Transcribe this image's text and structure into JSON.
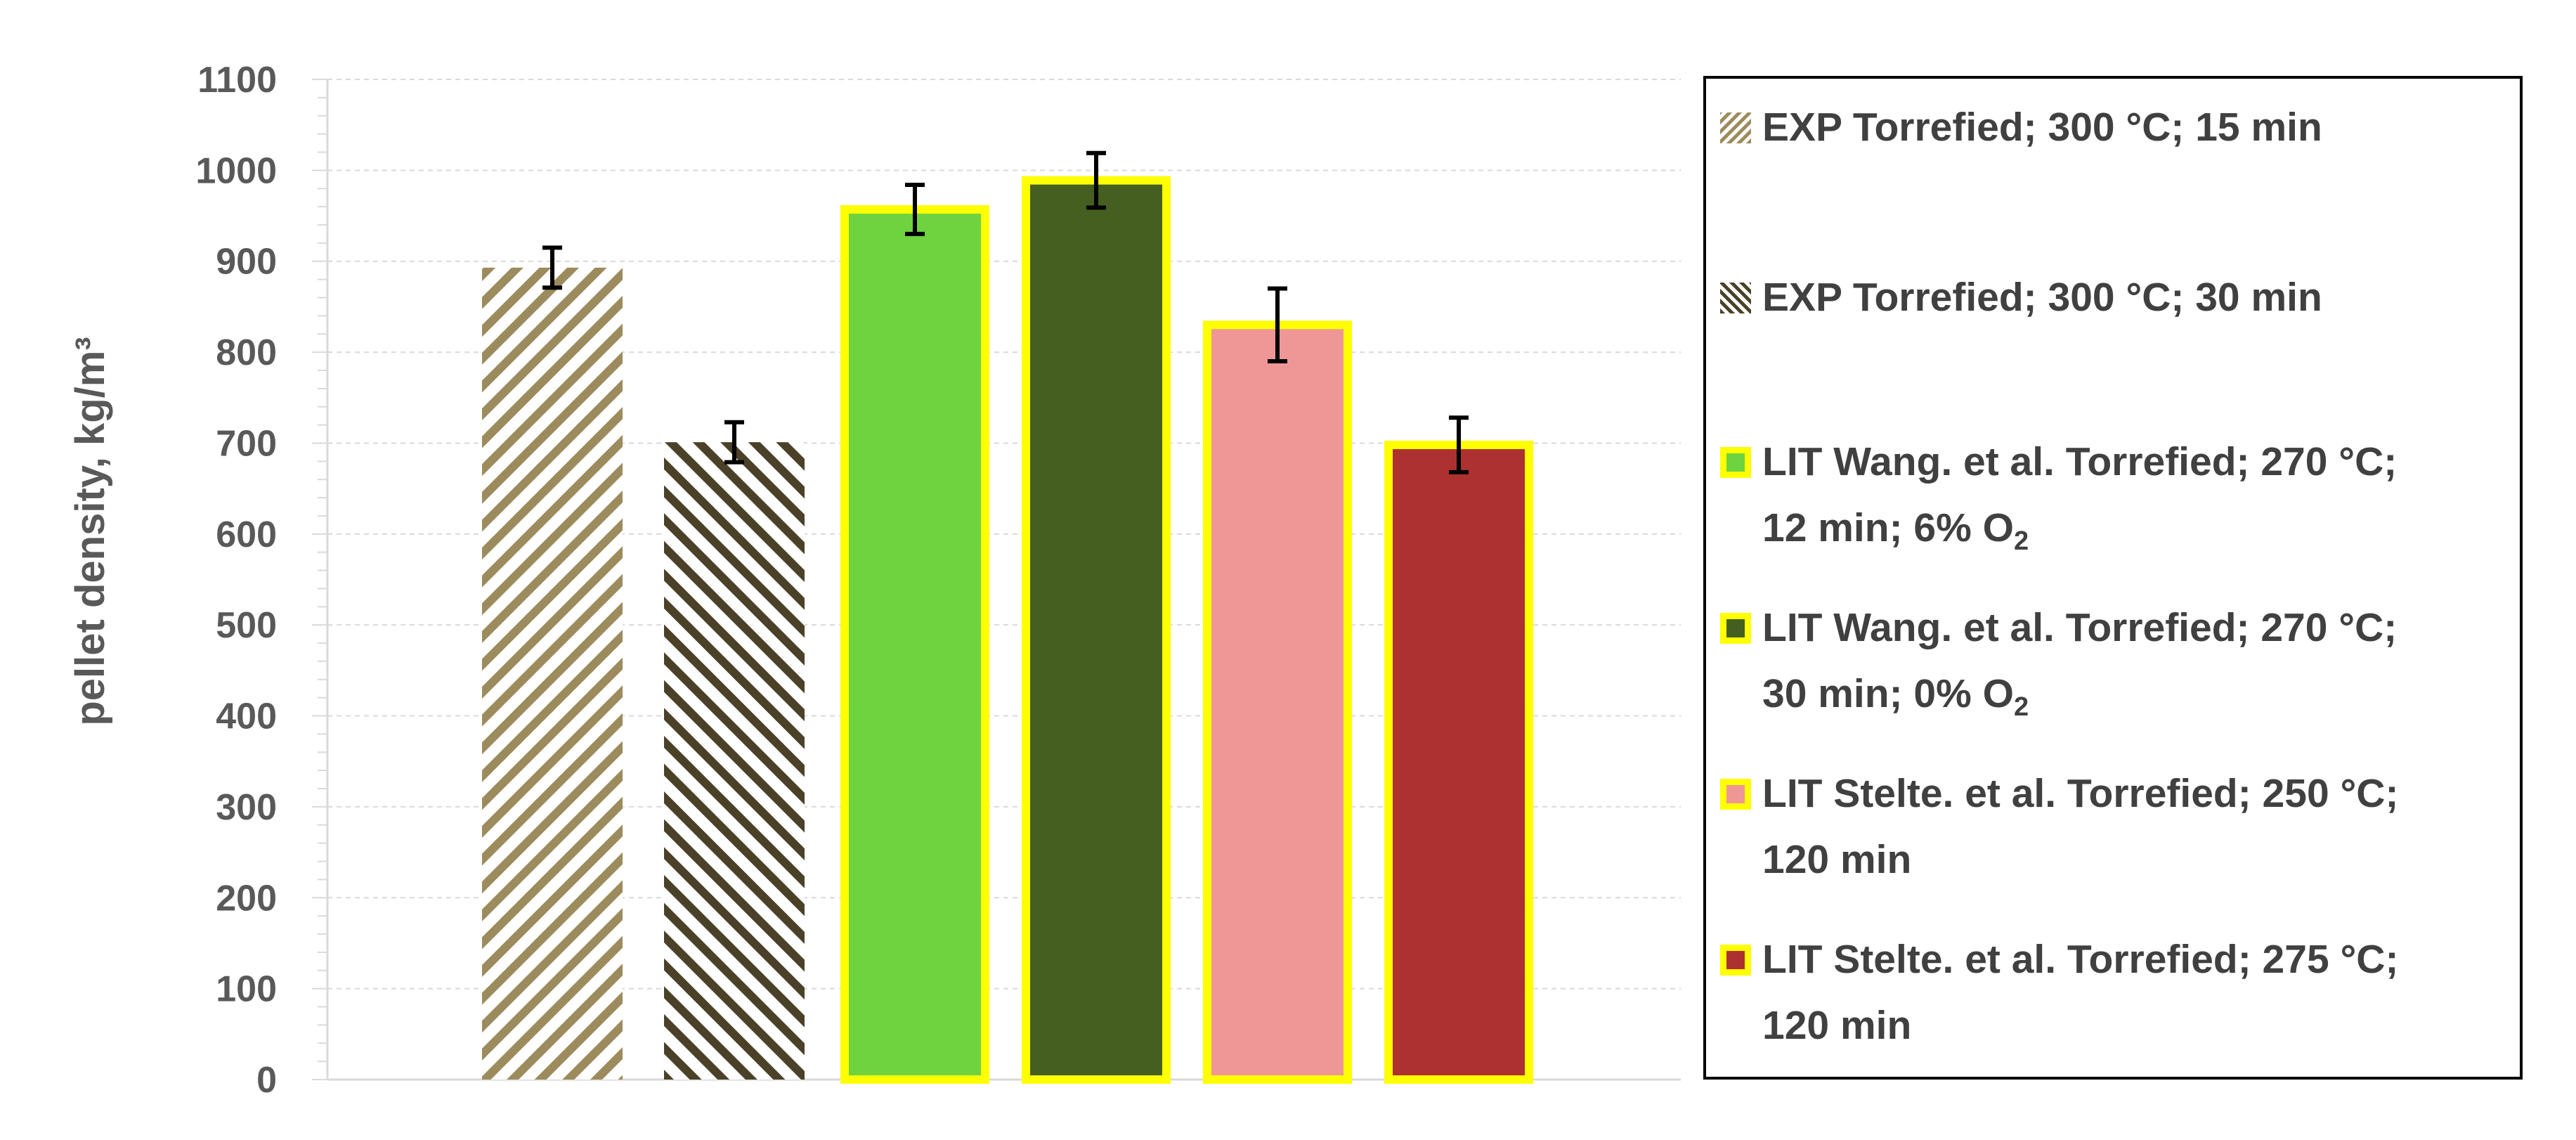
{
  "chart_data": {
    "type": "bar",
    "ylabel": "pellet density, kg/m³",
    "ylim": [
      0,
      1100
    ],
    "yticks": [
      0,
      100,
      200,
      300,
      400,
      500,
      600,
      700,
      800,
      900,
      1000,
      1100
    ],
    "grid": true,
    "legend_position": "right",
    "series": [
      {
        "name": "EXP Torrefied; 300 °C; 15 min",
        "value": 893,
        "error": 22,
        "fill": "hatch-forward",
        "color": "#9c8b5c",
        "outline": ""
      },
      {
        "name": "EXP Torrefied; 300 °C; 30 min",
        "value": 701,
        "error": 22,
        "fill": "hatch-back",
        "color": "#4a4128",
        "outline": ""
      },
      {
        "name": "LIT Wang. et al. Torrefied; 270 °C; 12 min; 6% O2",
        "value": 957,
        "error": 27,
        "fill": "solid",
        "color": "#6ed33f",
        "outline": "#ffff00"
      },
      {
        "name": "LIT Wang. et al. Torrefied; 270 °C; 30 min; 0% O2",
        "value": 989,
        "error": 30,
        "fill": "solid",
        "color": "#445f1f",
        "outline": "#ffff00"
      },
      {
        "name": "LIT Stelte. et al. Torrefied; 250 °C; 120 min",
        "value": 830,
        "error": 40,
        "fill": "solid",
        "color": "#ef9696",
        "outline": "#ffff00"
      },
      {
        "name": "LIT Stelte. et al. Torrefied; 275 °C; 120 min",
        "value": 698,
        "error": 30,
        "fill": "solid",
        "color": "#ad3131",
        "outline": "#ffff00"
      }
    ]
  },
  "legend": {
    "items": [
      {
        "line1": "EXP Torrefied; 300 °C; 15 min",
        "line2": "",
        "sub": "",
        "sub_suffix": ""
      },
      {
        "line1": "EXP Torrefied; 300 °C; 30 min",
        "line2": "",
        "sub": "",
        "sub_suffix": ""
      },
      {
        "line1": "LIT Wang. et al. Torrefied; 270 °C;",
        "line2": "12 min; 6% O",
        "sub": "2",
        "sub_suffix": ""
      },
      {
        "line1": "LIT Wang. et al. Torrefied; 270 °C;",
        "line2": "30 min; 0% O",
        "sub": "2",
        "sub_suffix": ""
      },
      {
        "line1": "LIT Stelte. et al. Torrefied; 250 °C;",
        "line2": "120 min",
        "sub": "",
        "sub_suffix": ""
      },
      {
        "line1": "LIT Stelte. et al. Torrefied; 275 °C;",
        "line2": "120 min",
        "sub": "",
        "sub_suffix": ""
      }
    ]
  }
}
